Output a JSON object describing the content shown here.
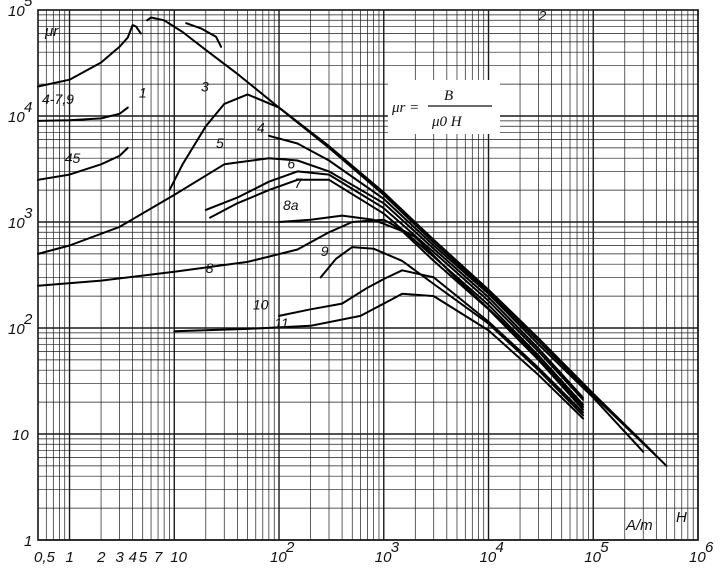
{
  "chart_data": {
    "type": "line",
    "xscale": "log",
    "yscale": "log",
    "xlim": [
      0.5,
      1000000
    ],
    "ylim": [
      1,
      100000
    ],
    "grid": true,
    "ylabel": "μr",
    "xlabel_symbol": "H",
    "xlabel_unit": "A/m",
    "formula": {
      "lhs": "μr =",
      "numerator": "B",
      "denominator": "μ0 H"
    },
    "x_tick_labels": [
      {
        "v": 0.5,
        "t": "0,5"
      },
      {
        "v": 1,
        "t": "1"
      },
      {
        "v": 2,
        "t": "2"
      },
      {
        "v": 3,
        "t": "3"
      },
      {
        "v": 4,
        "t": "4"
      },
      {
        "v": 5,
        "t": "5"
      },
      {
        "v": 7,
        "t": "7"
      },
      {
        "v": 10,
        "t": "10"
      },
      {
        "v": 100,
        "t": "10",
        "exp": "2"
      },
      {
        "v": 1000,
        "t": "10",
        "exp": "3"
      },
      {
        "v": 10000,
        "t": "10",
        "exp": "4"
      },
      {
        "v": 100000,
        "t": "10",
        "exp": "5"
      },
      {
        "v": 1000000,
        "t": "10",
        "exp": "6"
      }
    ],
    "y_tick_labels": [
      {
        "v": 1,
        "t": "1"
      },
      {
        "v": 10,
        "t": "10"
      },
      {
        "v": 100,
        "t": "10",
        "exp": "2"
      },
      {
        "v": 1000,
        "t": "10",
        "exp": "3"
      },
      {
        "v": 10000,
        "t": "10",
        "exp": "4"
      },
      {
        "v": 100000,
        "t": "10",
        "exp": "5"
      }
    ],
    "series": [
      {
        "name": "1",
        "points": [
          [
            0.5,
            19000
          ],
          [
            1,
            22000
          ],
          [
            2,
            32000
          ],
          [
            3,
            45000
          ],
          [
            3.6,
            55000
          ],
          [
            4,
            72000
          ],
          [
            4.3,
            70000
          ],
          [
            4.8,
            60000
          ]
        ]
      },
      {
        "name": "2",
        "points": [
          [
            5.5,
            80000
          ],
          [
            6,
            85000
          ],
          [
            8,
            80000
          ],
          [
            12,
            62000
          ],
          [
            20,
            42000
          ],
          [
            40,
            25000
          ],
          [
            100,
            12000
          ],
          [
            300,
            5200
          ],
          [
            1000,
            1900
          ],
          [
            3000,
            680
          ],
          [
            10000,
            230
          ],
          [
            30000,
            80
          ],
          [
            100000,
            24
          ],
          [
            300000,
            8.3
          ],
          [
            500000,
            5
          ]
        ]
      },
      {
        "name": "",
        "points": [
          [
            13,
            75000
          ],
          [
            18,
            67000
          ],
          [
            25,
            56000
          ],
          [
            28,
            45000
          ]
        ]
      },
      {
        "name": "3",
        "points": [
          [
            9,
            2000
          ],
          [
            12,
            3500
          ],
          [
            20,
            8000
          ],
          [
            30,
            13000
          ],
          [
            50,
            16000
          ],
          [
            100,
            12000
          ],
          [
            300,
            5000
          ],
          [
            1000,
            1800
          ],
          [
            3000,
            640
          ],
          [
            10000,
            220
          ],
          [
            30000,
            75
          ],
          [
            100000,
            23
          ],
          [
            400000,
            6.2
          ]
        ]
      },
      {
        "name": "4",
        "points": [
          [
            80,
            6500
          ],
          [
            150,
            5500
          ],
          [
            300,
            3800
          ],
          [
            1000,
            1650
          ],
          [
            3000,
            600
          ],
          [
            10000,
            210
          ],
          [
            30000,
            70
          ],
          [
            100000,
            22
          ],
          [
            300000,
            6.8
          ]
        ]
      },
      {
        "name": "5",
        "points": [
          [
            0.5,
            500
          ],
          [
            1,
            600
          ],
          [
            3,
            900
          ],
          [
            10,
            1800
          ],
          [
            30,
            3500
          ],
          [
            80,
            4000
          ],
          [
            150,
            3800
          ],
          [
            300,
            3000
          ],
          [
            1000,
            1500
          ],
          [
            3000,
            560
          ],
          [
            10000,
            195
          ],
          [
            30000,
            64
          ],
          [
            80000,
            22
          ]
        ]
      },
      {
        "name": "6",
        "points": [
          [
            20,
            1300
          ],
          [
            40,
            1700
          ],
          [
            80,
            2400
          ],
          [
            150,
            3000
          ],
          [
            300,
            2800
          ],
          [
            1000,
            1350
          ],
          [
            3000,
            520
          ],
          [
            10000,
            180
          ],
          [
            30000,
            60
          ],
          [
            80000,
            21
          ]
        ]
      },
      {
        "name": "7",
        "points": [
          [
            22,
            1100
          ],
          [
            40,
            1500
          ],
          [
            80,
            2000
          ],
          [
            150,
            2500
          ],
          [
            300,
            2500
          ],
          [
            1000,
            1200
          ],
          [
            3000,
            470
          ],
          [
            10000,
            165
          ],
          [
            30000,
            55
          ],
          [
            80000,
            19
          ]
        ]
      },
      {
        "name": "8a",
        "points": [
          [
            100,
            1000
          ],
          [
            200,
            1050
          ],
          [
            400,
            1150
          ],
          [
            800,
            1050
          ],
          [
            1500,
            820
          ],
          [
            3000,
            430
          ],
          [
            10000,
            150
          ],
          [
            30000,
            50
          ],
          [
            80000,
            17
          ]
        ]
      },
      {
        "name": "8",
        "points": [
          [
            0.5,
            250
          ],
          [
            2,
            280
          ],
          [
            10,
            340
          ],
          [
            50,
            420
          ],
          [
            150,
            550
          ],
          [
            300,
            800
          ],
          [
            500,
            1000
          ],
          [
            1000,
            1050
          ],
          [
            2000,
            720
          ],
          [
            5000,
            290
          ],
          [
            20000,
            80
          ],
          [
            80000,
            18
          ]
        ]
      },
      {
        "name": "9",
        "points": [
          [
            250,
            300
          ],
          [
            350,
            450
          ],
          [
            500,
            580
          ],
          [
            800,
            560
          ],
          [
            1500,
            430
          ],
          [
            3000,
            260
          ],
          [
            10000,
            110
          ],
          [
            30000,
            40
          ],
          [
            80000,
            15
          ]
        ]
      },
      {
        "name": "10",
        "points": [
          [
            100,
            130
          ],
          [
            200,
            150
          ],
          [
            400,
            170
          ],
          [
            700,
            240
          ],
          [
            1000,
            290
          ],
          [
            1500,
            350
          ],
          [
            3000,
            300
          ],
          [
            10000,
            115
          ],
          [
            30000,
            42
          ],
          [
            80000,
            16
          ]
        ]
      },
      {
        "name": "11",
        "points": [
          [
            10,
            93
          ],
          [
            50,
            98
          ],
          [
            200,
            105
          ],
          [
            600,
            130
          ],
          [
            1000,
            170
          ],
          [
            1500,
            210
          ],
          [
            3000,
            200
          ],
          [
            10000,
            95
          ],
          [
            30000,
            36
          ],
          [
            80000,
            14
          ]
        ]
      },
      {
        "name": "4-7,9",
        "points": [
          [
            0.5,
            9000
          ],
          [
            1,
            9100
          ],
          [
            2,
            9500
          ],
          [
            3,
            10500
          ],
          [
            3.6,
            12000
          ]
        ]
      },
      {
        "name": "45",
        "points": [
          [
            0.5,
            2500
          ],
          [
            1,
            2800
          ],
          [
            2,
            3500
          ],
          [
            3,
            4200
          ],
          [
            3.6,
            5000
          ]
        ]
      }
    ]
  }
}
